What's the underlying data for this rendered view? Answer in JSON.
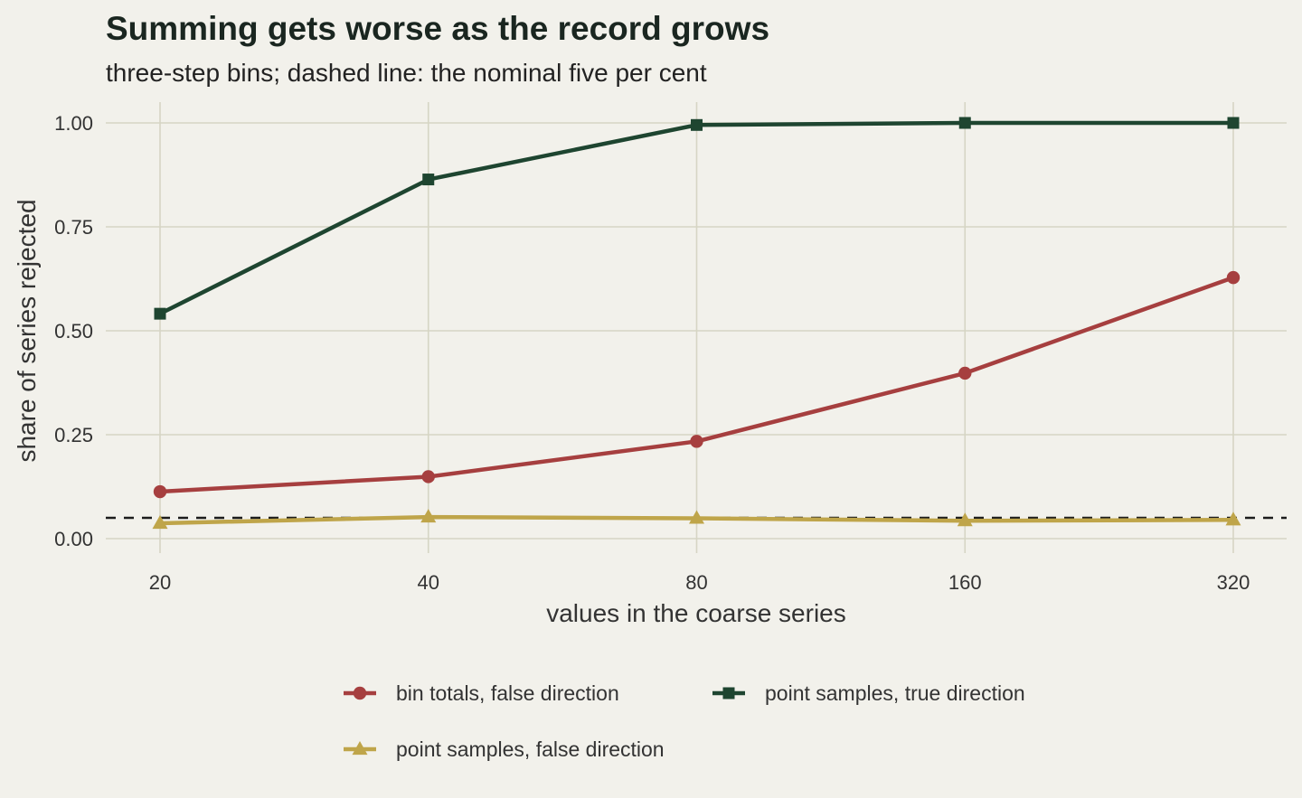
{
  "chart_data": {
    "type": "line",
    "title": "Summing gets worse as the record grows",
    "subtitle": "three-step bins; dashed line: the nominal five per cent",
    "xlabel": "values in the coarse series",
    "ylabel": "share of series rejected",
    "x_scale": "log2",
    "x": [
      20,
      40,
      80,
      160,
      320
    ],
    "x_tick_labels": [
      "20",
      "40",
      "80",
      "160",
      "320"
    ],
    "ylim": [
      0,
      1
    ],
    "y_ticks": [
      0,
      0.25,
      0.5,
      0.75,
      1.0
    ],
    "y_tick_labels": [
      "0.00",
      "0.25",
      "0.50",
      "0.75",
      "1.00"
    ],
    "reference_line": {
      "y": 0.05,
      "style": "dashed",
      "color": "#1c1c1c"
    },
    "grid": true,
    "legend_position": "bottom",
    "series": [
      {
        "name": "bin totals, false direction",
        "values": [
          0.113,
          0.149,
          0.234,
          0.398,
          0.628
        ],
        "color": "#a63f3f",
        "marker": "circle"
      },
      {
        "name": "point samples, true direction",
        "values": [
          0.541,
          0.864,
          0.995,
          1.0,
          1.0
        ],
        "color": "#1e4530",
        "marker": "square"
      },
      {
        "name": "point samples, false direction",
        "values": [
          0.037,
          0.052,
          0.049,
          0.043,
          0.045
        ],
        "color": "#bfa54a",
        "marker": "triangle"
      }
    ]
  }
}
